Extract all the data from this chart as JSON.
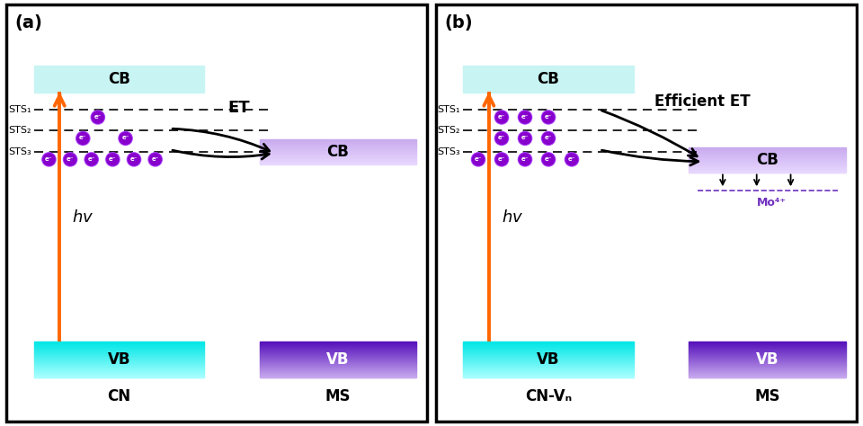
{
  "panel_a_label": "(a)",
  "panel_b_label": "(b)",
  "cn_label_a": "CN",
  "cn_label_b": "CN-Vₙ",
  "ms_label": "MS",
  "et_label_a": "ET",
  "et_label_b": "Efficient ET",
  "mo_label": "Mo⁴⁺",
  "hv_label": "hv",
  "sts_labels": [
    "STS₁",
    "STS₂",
    "STS₃"
  ],
  "cn_cb_color": "#c8f4f4",
  "cn_vb_color_top": "#00e5e5",
  "cn_vb_color_bot": "#aaffff",
  "ms_cb_color": "#c8aaee",
  "ms_vb_color_top": "#5510bb",
  "ms_vb_color_bot": "#c8aaee",
  "electron_color": "#8800cc",
  "electron_ring_color": "#aa44ff",
  "arrow_color": "#ff6600",
  "background": "#ffffff",
  "border_color": "#000000",
  "mo_color": "#7030c0"
}
